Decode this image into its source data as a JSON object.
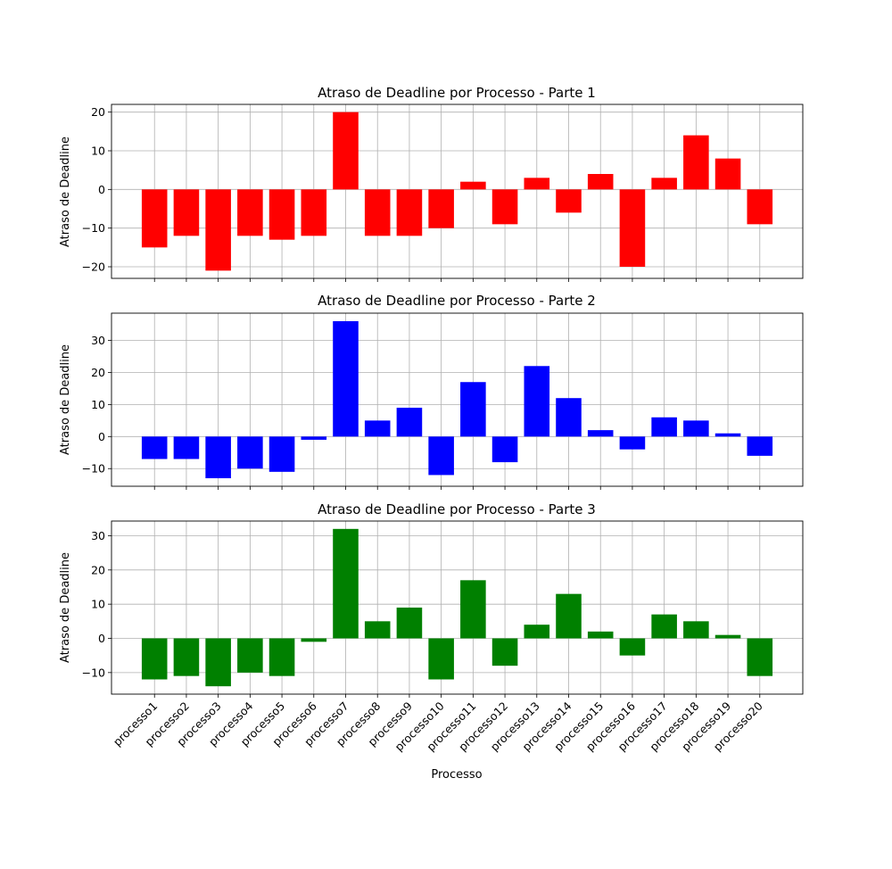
{
  "chart_data": [
    {
      "type": "bar",
      "title": "Atraso de Deadline por Processo - Parte 1",
      "ylabel": "Atraso de Deadline",
      "xlabel": "",
      "color": "#ff0000",
      "grid": true,
      "ylim": [
        -23,
        22
      ],
      "yticks": [
        -20,
        -10,
        0,
        10,
        20
      ],
      "yticklabels": [
        "−20",
        "−10",
        "0",
        "10",
        "20"
      ],
      "categories": [
        "processo1",
        "processo2",
        "processo3",
        "processo4",
        "processo5",
        "processo6",
        "processo7",
        "processo8",
        "processo9",
        "processo10",
        "processo11",
        "processo12",
        "processo13",
        "processo14",
        "processo15",
        "processo16",
        "processo17",
        "processo18",
        "processo19",
        "processo20"
      ],
      "values": [
        -15,
        -12,
        -21,
        -12,
        -13,
        -12,
        20,
        -12,
        -12,
        -10,
        2,
        -9,
        3,
        -6,
        4,
        -20,
        3,
        14,
        8,
        -9
      ],
      "show_xticklabels": false
    },
    {
      "type": "bar",
      "title": "Atraso de Deadline por Processo - Parte 2",
      "ylabel": "Atraso de Deadline",
      "xlabel": "",
      "color": "#0000ff",
      "grid": true,
      "ylim": [
        -15.5,
        38.5
      ],
      "yticks": [
        -10,
        0,
        10,
        20,
        30
      ],
      "yticklabels": [
        "−10",
        "0",
        "10",
        "20",
        "30"
      ],
      "categories": [
        "processo1",
        "processo2",
        "processo3",
        "processo4",
        "processo5",
        "processo6",
        "processo7",
        "processo8",
        "processo9",
        "processo10",
        "processo11",
        "processo12",
        "processo13",
        "processo14",
        "processo15",
        "processo16",
        "processo17",
        "processo18",
        "processo19",
        "processo20"
      ],
      "values": [
        -7,
        -7,
        -13,
        -10,
        -11,
        -1,
        36,
        5,
        9,
        -12,
        17,
        -8,
        22,
        12,
        2,
        -4,
        6,
        5,
        1,
        -6
      ],
      "show_xticklabels": false
    },
    {
      "type": "bar",
      "title": "Atraso de Deadline por Processo - Parte 3",
      "ylabel": "Atraso de Deadline",
      "xlabel": "Processo",
      "color": "#008000",
      "grid": true,
      "ylim": [
        -16.3,
        34.3
      ],
      "yticks": [
        -10,
        0,
        10,
        20,
        30
      ],
      "yticklabels": [
        "−10",
        "0",
        "10",
        "20",
        "30"
      ],
      "categories": [
        "processo1",
        "processo2",
        "processo3",
        "processo4",
        "processo5",
        "processo6",
        "processo7",
        "processo8",
        "processo9",
        "processo10",
        "processo11",
        "processo12",
        "processo13",
        "processo14",
        "processo15",
        "processo16",
        "processo17",
        "processo18",
        "processo19",
        "processo20"
      ],
      "values": [
        -12,
        -11,
        -14,
        -10,
        -11,
        -1,
        32,
        5,
        9,
        -12,
        17,
        -8,
        4,
        13,
        2,
        -5,
        7,
        5,
        1,
        -11
      ],
      "show_xticklabels": true
    }
  ]
}
